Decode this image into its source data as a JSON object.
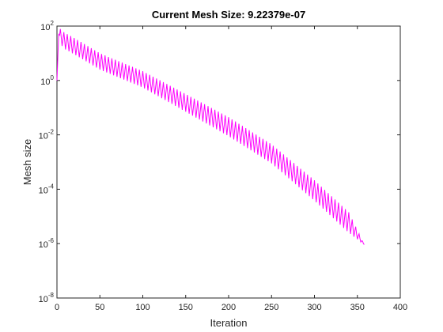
{
  "chart_data": {
    "type": "line",
    "title": "Current Mesh Size: 9.22379e-07",
    "xlabel": "Iteration",
    "ylabel": "Mesh size",
    "xlim": [
      0,
      400
    ],
    "ylim": [
      1e-08,
      100
    ],
    "yscale": "log",
    "grid": false,
    "x_ticks": [
      0,
      50,
      100,
      150,
      200,
      250,
      300,
      350,
      400
    ],
    "y_ticks": [
      {
        "exp": -8,
        "label": "10",
        "sup": "-8"
      },
      {
        "exp": -6,
        "label": "10",
        "sup": "-6"
      },
      {
        "exp": -4,
        "label": "10",
        "sup": "-4"
      },
      {
        "exp": -2,
        "label": "10",
        "sup": "-2"
      },
      {
        "exp": 0,
        "label": "10",
        "sup": "0"
      },
      {
        "exp": 2,
        "label": "10",
        "sup": "2"
      }
    ],
    "series": [
      {
        "color": "#ff00ff",
        "envelope": [
          {
            "x": 0,
            "y": 1,
            "amp": 1.0
          },
          {
            "x": 2,
            "y": 50,
            "amp": 1.0
          },
          {
            "x": 8,
            "y": 30,
            "amp": 1.2
          },
          {
            "x": 30,
            "y": 12,
            "amp": 1.2
          },
          {
            "x": 50,
            "y": 5,
            "amp": 1.2
          },
          {
            "x": 100,
            "y": 1.1,
            "amp": 1.2
          },
          {
            "x": 150,
            "y": 0.15,
            "amp": 1.3
          },
          {
            "x": 200,
            "y": 0.02,
            "amp": 1.4
          },
          {
            "x": 250,
            "y": 0.002,
            "amp": 1.4
          },
          {
            "x": 300,
            "y": 9e-05,
            "amp": 1.5
          },
          {
            "x": 340,
            "y": 6e-06,
            "amp": 1.5
          },
          {
            "x": 358,
            "y": 9.22379e-07,
            "amp": 0.0
          }
        ],
        "oscillation_period": 4
      }
    ]
  }
}
